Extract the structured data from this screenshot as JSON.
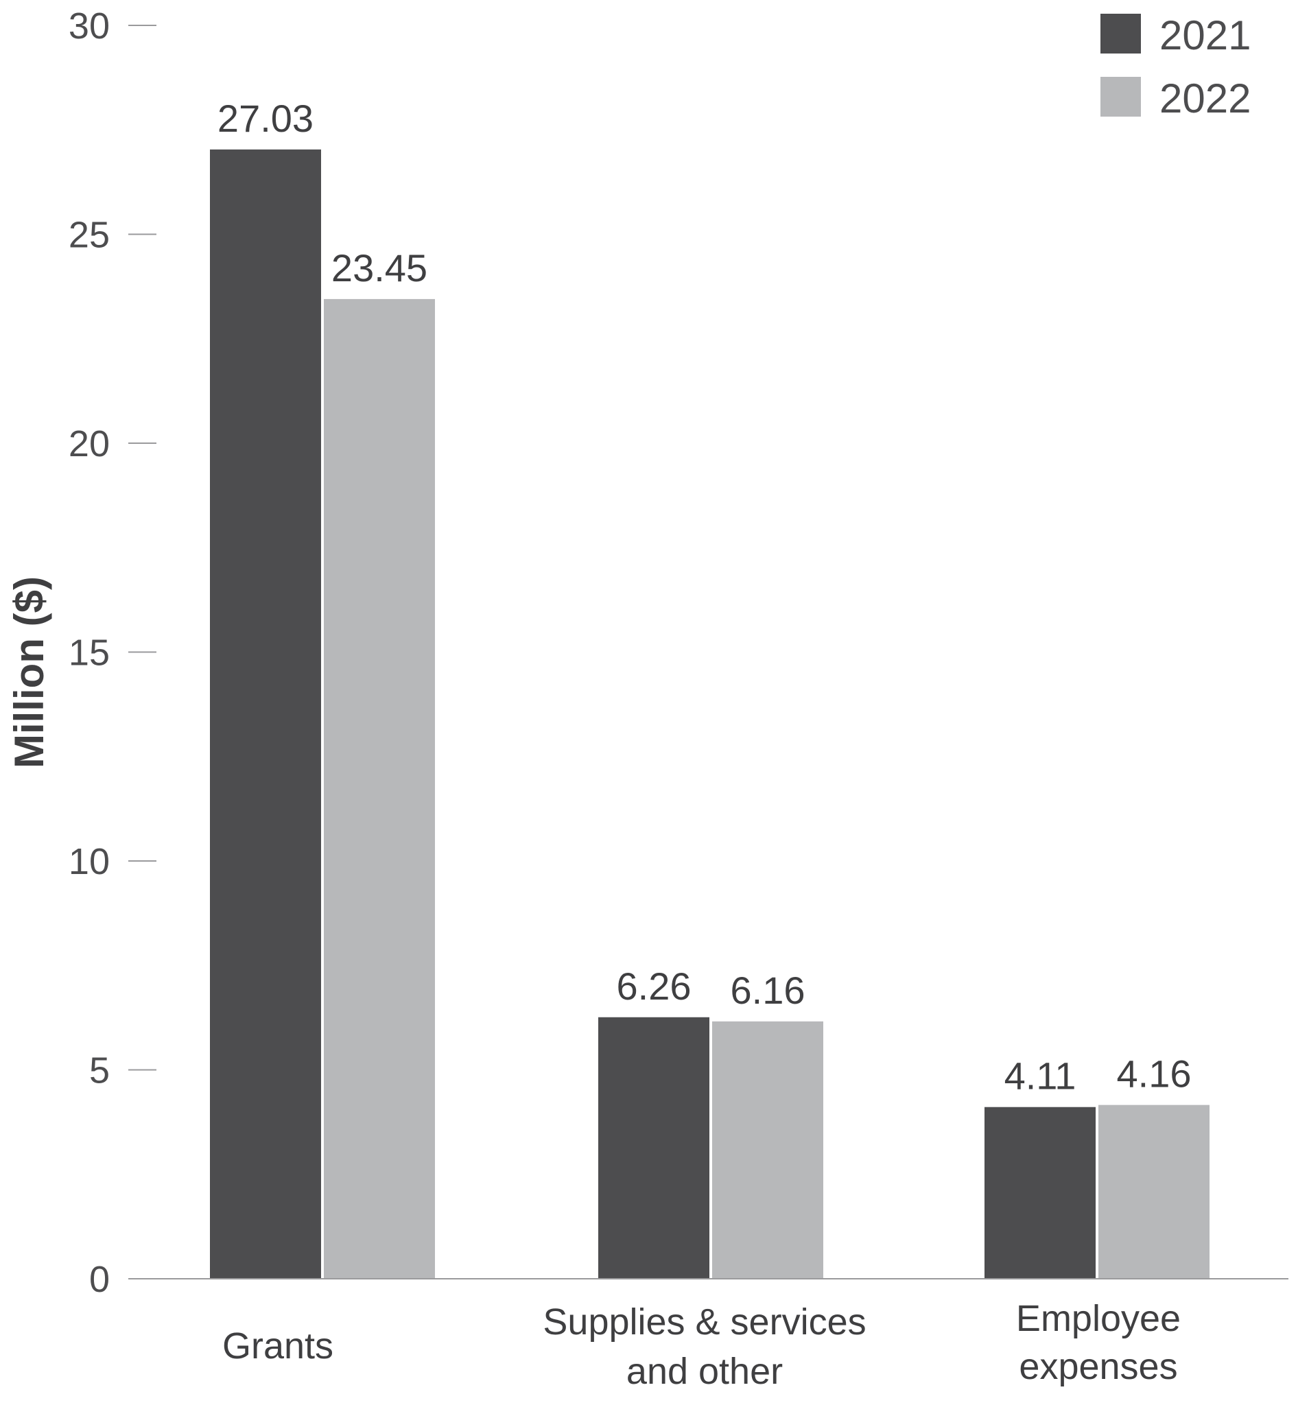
{
  "chart_data": {
    "type": "bar",
    "title": "",
    "xlabel": "",
    "ylabel": "Million ($)",
    "ylim": [
      0,
      30
    ],
    "yticks": [
      "0",
      "5",
      "10",
      "15",
      "20",
      "25",
      "30"
    ],
    "grid": false,
    "legend_position": "top-right",
    "categories": [
      [
        "Grants"
      ],
      [
        "Supplies & services",
        "and other"
      ],
      [
        "Employee",
        "expenses"
      ]
    ],
    "series": [
      {
        "name": "2021",
        "color": "#4d4d4f",
        "values": [
          27.03,
          6.26,
          4.11
        ],
        "labels": [
          "27.03",
          "6.26",
          "4.11"
        ]
      },
      {
        "name": "2022",
        "color": "#b7b8ba",
        "values": [
          23.45,
          6.16,
          4.16
        ],
        "labels": [
          "23.45",
          "6.16",
          "4.16"
        ]
      }
    ]
  }
}
